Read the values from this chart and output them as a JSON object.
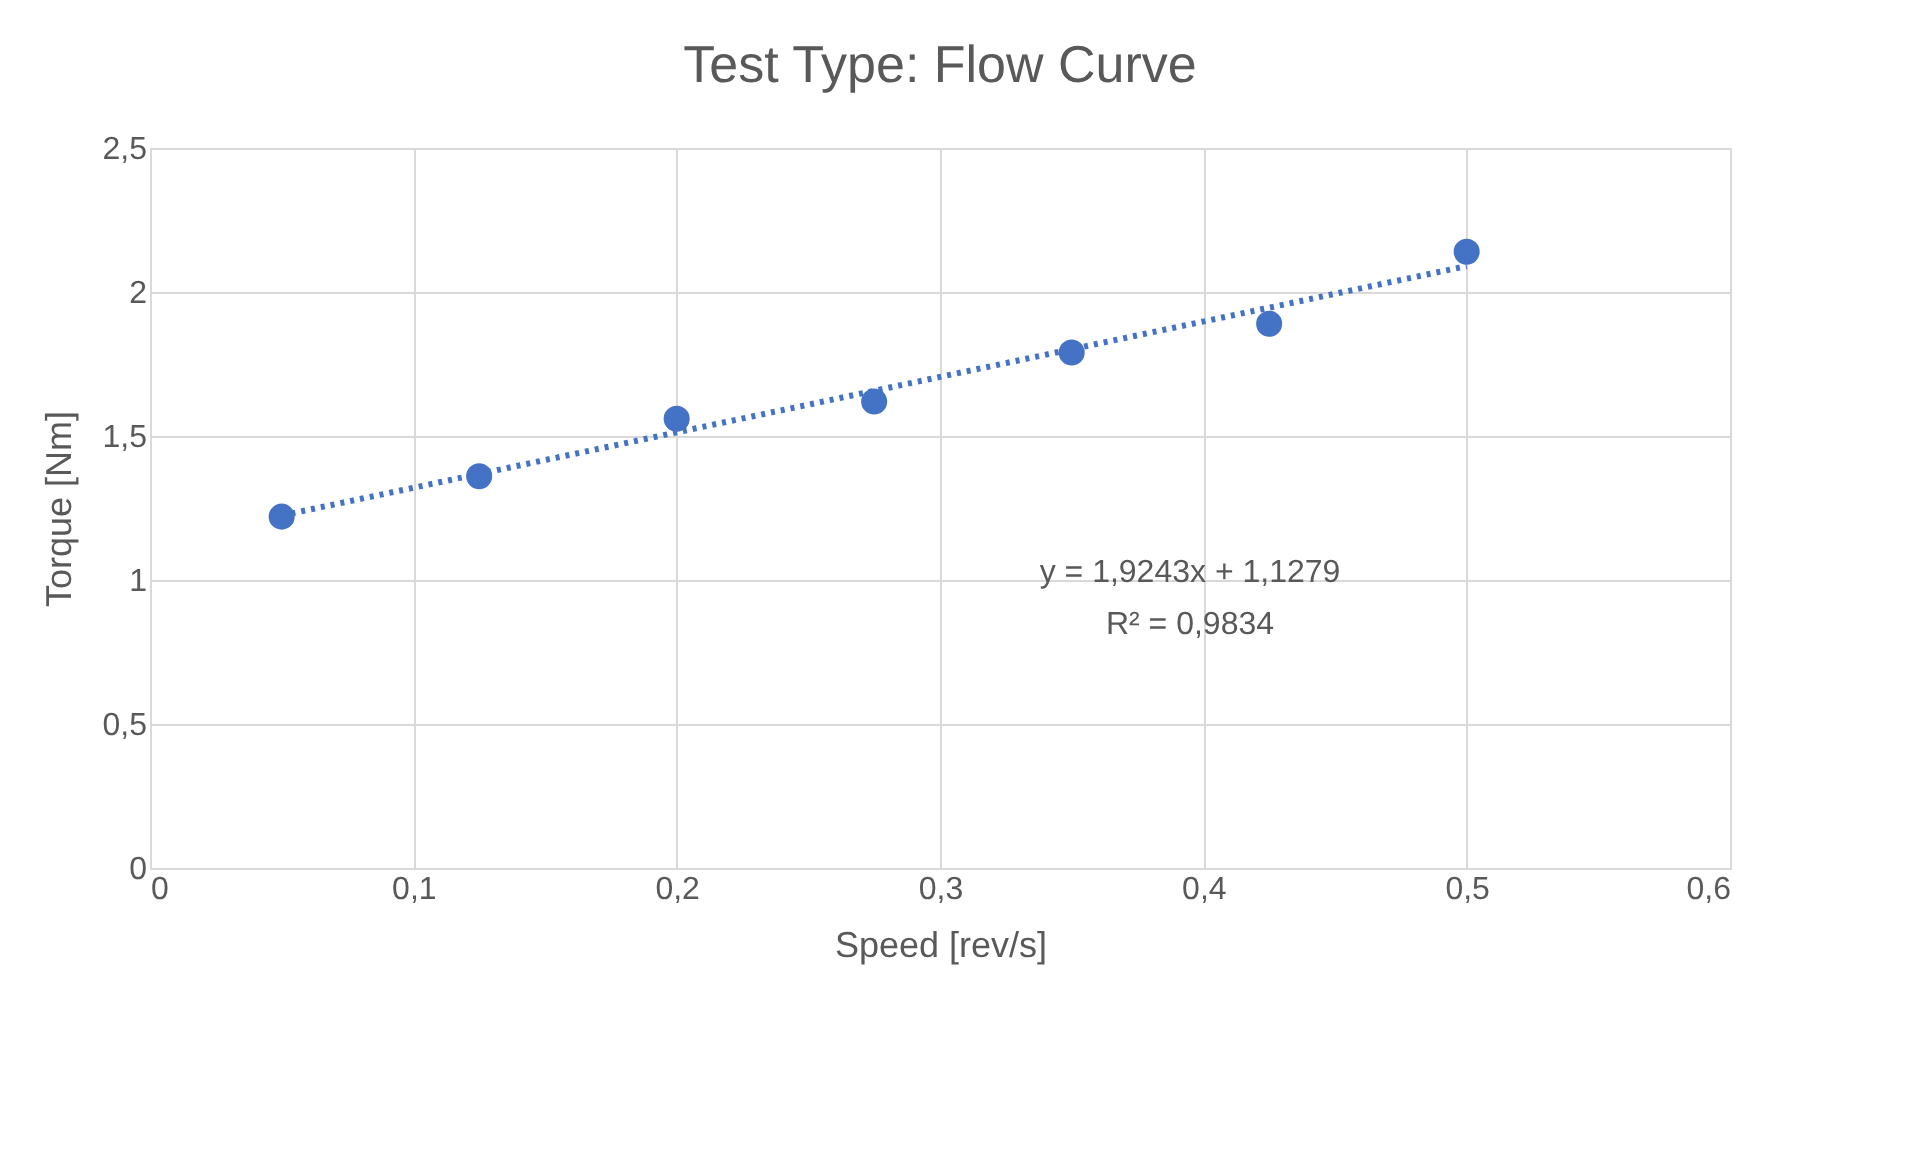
{
  "chart_data": {
    "type": "scatter",
    "title": "Test Type: Flow Curve",
    "xlabel": "Speed [rev/s]",
    "ylabel": "Torque [Nm]",
    "series": [
      {
        "type": "scatter",
        "color": "#4472c4",
        "marker": "circle",
        "x": [
          0.05,
          0.125,
          0.2,
          0.275,
          0.35,
          0.425,
          0.5
        ],
        "values": [
          1.22,
          1.36,
          1.56,
          1.62,
          1.79,
          1.89,
          2.14
        ]
      },
      {
        "type": "line",
        "color": "#4472c4",
        "line_style": "dotted",
        "marker": "none",
        "x": [
          0.05,
          0.5
        ],
        "values": [
          1.224,
          2.09
        ]
      }
    ],
    "xlim": [
      0,
      0.6
    ],
    "ylim": [
      0,
      2.5
    ],
    "xticks": [
      0,
      {
        "value": 0.1,
        "label": "0,1"
      },
      {
        "value": 0.2,
        "label": "0,2"
      },
      {
        "value": 0.3,
        "label": "0,3"
      },
      {
        "value": 0.4,
        "label": "0,4"
      },
      {
        "value": 0.5,
        "label": "0,5"
      },
      {
        "value": 0.6,
        "label": "0,6"
      }
    ],
    "yticks": [
      0,
      {
        "value": 0.5,
        "label": "0,5"
      },
      1,
      {
        "value": 1.5,
        "label": "1,5"
      },
      2,
      {
        "value": 2.5,
        "label": "2,5"
      }
    ],
    "annotations": [
      "y = 1,9243x + 1,1279",
      "R² = 0,9834"
    ],
    "grid": true,
    "legend": false
  }
}
